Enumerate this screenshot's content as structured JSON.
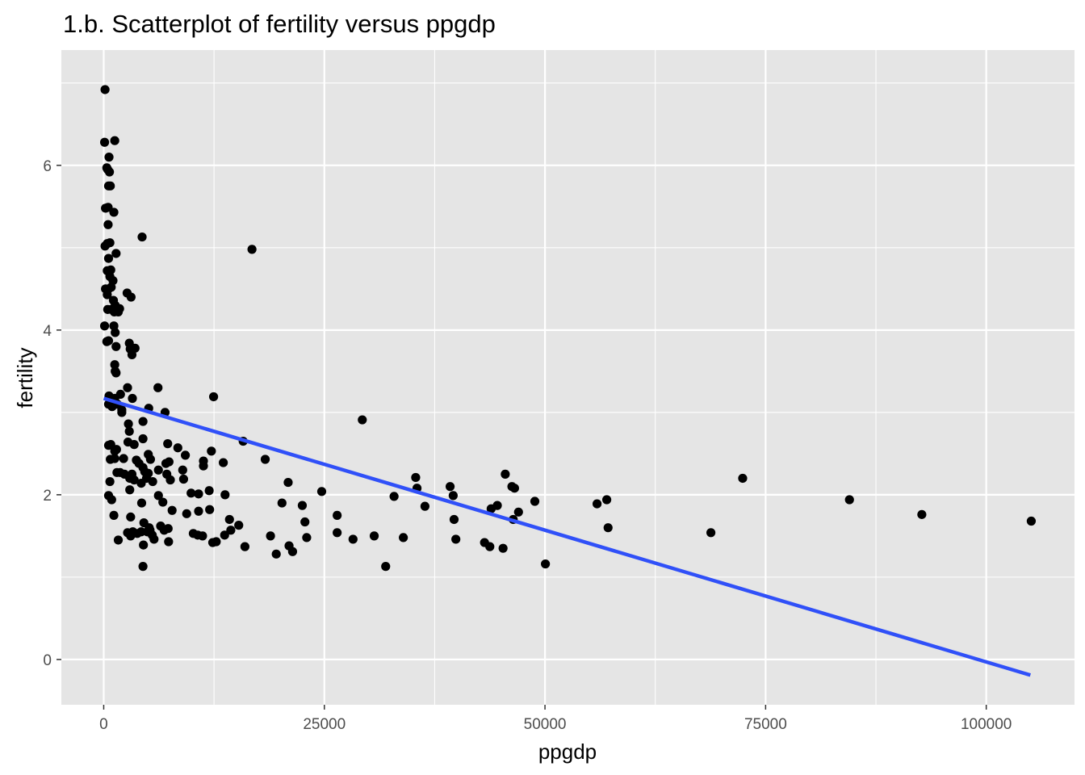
{
  "chart_data": {
    "type": "scatter",
    "title": "1.b. Scatterplot of fertility versus ppgdp",
    "xlabel": "ppgdp",
    "ylabel": "fertility",
    "xlim": [
      -4800,
      110000
    ],
    "ylim": [
      -0.55,
      7.4
    ],
    "x_ticks": [
      0,
      25000,
      50000,
      75000,
      100000
    ],
    "x_tick_labels": [
      "0",
      "25000",
      "50000",
      "75000",
      "100000"
    ],
    "y_ticks": [
      0,
      2,
      4,
      6
    ],
    "y_tick_labels": [
      "0",
      "2",
      "4",
      "6"
    ],
    "grid": true,
    "legend": "none",
    "colors": {
      "panel": "#e5e5e5",
      "grid": "#ffffff",
      "points": "#000000",
      "fit_line": "#3050f8",
      "tick_text": "#4d4d4d"
    },
    "fit_line": {
      "x": [
        0,
        105000
      ],
      "y": [
        3.17,
        -0.19
      ]
    },
    "points": [
      [
        150,
        6.92
      ],
      [
        100,
        6.28
      ],
      [
        1250,
        6.3
      ],
      [
        600,
        6.1
      ],
      [
        350,
        5.97
      ],
      [
        450,
        5.95
      ],
      [
        650,
        5.92
      ],
      [
        550,
        5.75
      ],
      [
        750,
        5.75
      ],
      [
        200,
        5.48
      ],
      [
        500,
        5.49
      ],
      [
        1150,
        5.43
      ],
      [
        500,
        5.28
      ],
      [
        400,
        5.05
      ],
      [
        700,
        5.06
      ],
      [
        150,
        5.02
      ],
      [
        1400,
        4.93
      ],
      [
        550,
        4.87
      ],
      [
        4350,
        5.13
      ],
      [
        16800,
        4.98
      ],
      [
        400,
        4.72
      ],
      [
        800,
        4.73
      ],
      [
        700,
        4.65
      ],
      [
        1050,
        4.6
      ],
      [
        200,
        4.5
      ],
      [
        550,
        4.5
      ],
      [
        850,
        4.52
      ],
      [
        400,
        4.43
      ],
      [
        2650,
        4.45
      ],
      [
        3100,
        4.4
      ],
      [
        1100,
        4.36
      ],
      [
        1300,
        4.3
      ],
      [
        450,
        4.25
      ],
      [
        850,
        4.25
      ],
      [
        1200,
        4.22
      ],
      [
        1650,
        4.22
      ],
      [
        1800,
        4.26
      ],
      [
        1150,
        4.05
      ],
      [
        1300,
        3.97
      ],
      [
        100,
        4.05
      ],
      [
        350,
        3.86
      ],
      [
        550,
        3.87
      ],
      [
        1400,
        3.8
      ],
      [
        2900,
        3.84
      ],
      [
        3000,
        3.77
      ],
      [
        3550,
        3.78
      ],
      [
        3200,
        3.7
      ],
      [
        1250,
        3.58
      ],
      [
        1300,
        3.5
      ],
      [
        1400,
        3.48
      ],
      [
        2700,
        3.3
      ],
      [
        6150,
        3.3
      ],
      [
        12450,
        3.19
      ],
      [
        3250,
        3.17
      ],
      [
        1900,
        3.22
      ],
      [
        850,
        3.17
      ],
      [
        1250,
        3.17
      ],
      [
        550,
        3.1
      ],
      [
        950,
        3.07
      ],
      [
        600,
        3.2
      ],
      [
        1550,
        3.1
      ],
      [
        2050,
        3.0
      ],
      [
        2050,
        3.03
      ],
      [
        5100,
        3.05
      ],
      [
        6950,
        3.0
      ],
      [
        29300,
        2.91
      ],
      [
        4450,
        2.89
      ],
      [
        2800,
        2.86
      ],
      [
        2900,
        2.77
      ],
      [
        550,
        2.6
      ],
      [
        800,
        2.61
      ],
      [
        1250,
        2.53
      ],
      [
        1450,
        2.55
      ],
      [
        2750,
        2.64
      ],
      [
        3450,
        2.61
      ],
      [
        4450,
        2.68
      ],
      [
        7250,
        2.62
      ],
      [
        8400,
        2.57
      ],
      [
        9250,
        2.48
      ],
      [
        15800,
        2.65
      ],
      [
        12200,
        2.53
      ],
      [
        750,
        2.43
      ],
      [
        1250,
        2.44
      ],
      [
        2250,
        2.44
      ],
      [
        3700,
        2.42
      ],
      [
        5050,
        2.49
      ],
      [
        5300,
        2.43
      ],
      [
        6200,
        2.3
      ],
      [
        7050,
        2.38
      ],
      [
        7400,
        2.4
      ],
      [
        4000,
        2.38
      ],
      [
        4450,
        2.33
      ],
      [
        4650,
        2.28
      ],
      [
        5050,
        2.26
      ],
      [
        1500,
        2.27
      ],
      [
        1850,
        2.27
      ],
      [
        2350,
        2.25
      ],
      [
        2950,
        2.2
      ],
      [
        3200,
        2.25
      ],
      [
        3450,
        2.18
      ],
      [
        4250,
        2.14
      ],
      [
        4850,
        2.2
      ],
      [
        5550,
        2.16
      ],
      [
        7150,
        2.25
      ],
      [
        7550,
        2.18
      ],
      [
        9050,
        2.19
      ],
      [
        11300,
        2.41
      ],
      [
        11300,
        2.35
      ],
      [
        13550,
        2.39
      ],
      [
        18300,
        2.43
      ],
      [
        20900,
        2.15
      ],
      [
        35350,
        2.21
      ],
      [
        39250,
        2.1
      ],
      [
        45500,
        2.25
      ],
      [
        46250,
        2.1
      ],
      [
        46550,
        2.08
      ],
      [
        72400,
        2.2
      ],
      [
        700,
        2.16
      ],
      [
        550,
        1.99
      ],
      [
        900,
        1.94
      ],
      [
        2950,
        2.06
      ],
      [
        6200,
        1.99
      ],
      [
        6700,
        1.91
      ],
      [
        8950,
        2.3
      ],
      [
        9900,
        2.02
      ],
      [
        10750,
        2.01
      ],
      [
        11950,
        2.05
      ],
      [
        13750,
        2.0
      ],
      [
        24700,
        2.04
      ],
      [
        32900,
        1.98
      ],
      [
        35500,
        2.08
      ],
      [
        39600,
        1.99
      ],
      [
        48850,
        1.92
      ],
      [
        57000,
        1.94
      ],
      [
        84500,
        1.94
      ],
      [
        4300,
        1.9
      ],
      [
        7750,
        1.81
      ],
      [
        9400,
        1.77
      ],
      [
        10750,
        1.8
      ],
      [
        12000,
        1.82
      ],
      [
        20200,
        1.9
      ],
      [
        22500,
        1.87
      ],
      [
        36400,
        1.86
      ],
      [
        43900,
        1.83
      ],
      [
        44600,
        1.87
      ],
      [
        55900,
        1.89
      ],
      [
        47000,
        1.79
      ],
      [
        1150,
        1.75
      ],
      [
        3050,
        1.73
      ],
      [
        14250,
        1.7
      ],
      [
        26450,
        1.75
      ],
      [
        39700,
        1.7
      ],
      [
        46400,
        1.7
      ],
      [
        92700,
        1.76
      ],
      [
        105100,
        1.68
      ],
      [
        4550,
        1.66
      ],
      [
        5150,
        1.6
      ],
      [
        4950,
        1.55
      ],
      [
        5500,
        1.51
      ],
      [
        6450,
        1.62
      ],
      [
        6850,
        1.57
      ],
      [
        7300,
        1.59
      ],
      [
        3300,
        1.55
      ],
      [
        3800,
        1.53
      ],
      [
        4250,
        1.55
      ],
      [
        5250,
        1.57
      ],
      [
        15300,
        1.63
      ],
      [
        14400,
        1.57
      ],
      [
        22800,
        1.67
      ],
      [
        57150,
        1.6
      ],
      [
        2700,
        1.54
      ],
      [
        3050,
        1.5
      ],
      [
        10150,
        1.53
      ],
      [
        10650,
        1.51
      ],
      [
        11200,
        1.5
      ],
      [
        13700,
        1.51
      ],
      [
        18900,
        1.5
      ],
      [
        23000,
        1.48
      ],
      [
        26450,
        1.54
      ],
      [
        30650,
        1.5
      ],
      [
        33950,
        1.48
      ],
      [
        39900,
        1.46
      ],
      [
        68800,
        1.54
      ],
      [
        1650,
        1.45
      ],
      [
        5700,
        1.46
      ],
      [
        7350,
        1.43
      ],
      [
        12350,
        1.42
      ],
      [
        12750,
        1.43
      ],
      [
        16000,
        1.37
      ],
      [
        28250,
        1.46
      ],
      [
        21000,
        1.38
      ],
      [
        21400,
        1.31
      ],
      [
        19550,
        1.28
      ],
      [
        43150,
        1.42
      ],
      [
        43750,
        1.37
      ],
      [
        45250,
        1.35
      ],
      [
        4500,
        1.39
      ],
      [
        4450,
        1.13
      ],
      [
        31950,
        1.13
      ],
      [
        50050,
        1.16
      ]
    ]
  }
}
